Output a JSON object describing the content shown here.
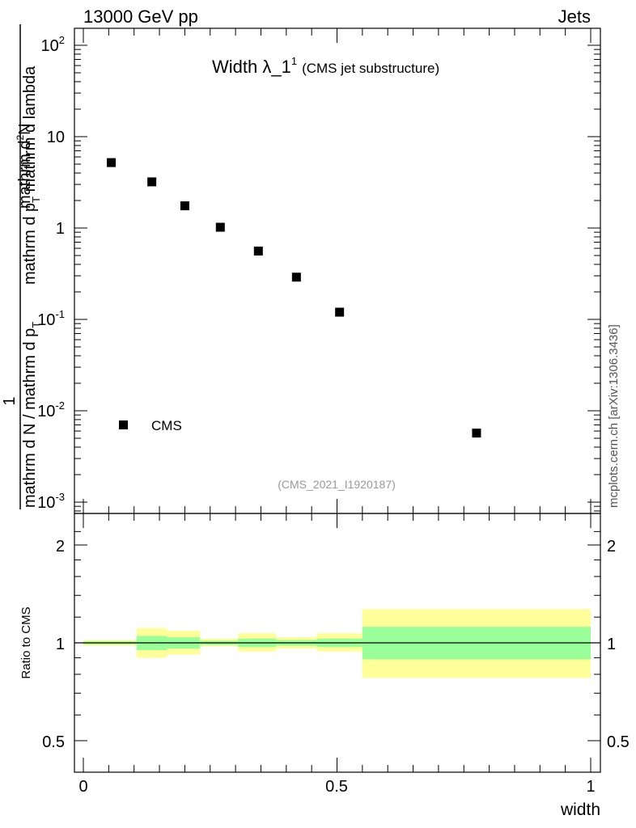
{
  "header": {
    "energy_label": "13000 GeV pp",
    "process_label": "Jets"
  },
  "top_panel": {
    "title_main": "Width λ_1",
    "title_sup": "1",
    "title_note": "(CMS jet substructure)",
    "ylabel_numerator": "mathrm d²N",
    "ylabel_numer_parts": [
      "mathrm d",
      "2",
      "N"
    ],
    "ylabel_denominator_parts": [
      "mathrm d p",
      "T",
      " mathrm d lambda"
    ],
    "ylabel_prefactor": "1",
    "ylabel_prefactor_denominator_parts": [
      "mathrm d N / mathrm d p",
      "T"
    ],
    "legend_label": "CMS",
    "analysis_id": "(CMS_2021_I1920187)",
    "yticks": [
      {
        "base": "10",
        "exp": "-3",
        "value": 0.001
      },
      {
        "base": "10",
        "exp": "-2",
        "value": 0.01
      },
      {
        "base": "10",
        "exp": "-1",
        "value": 0.1
      },
      {
        "base": "1",
        "exp": "",
        "value": 1
      },
      {
        "base": "10",
        "exp": "",
        "value": 10
      },
      {
        "base": "10",
        "exp": "2",
        "value": 100
      }
    ]
  },
  "ratio_panel": {
    "ylabel": "Ratio to CMS",
    "yticks": [
      "2",
      "1",
      "0.5"
    ],
    "xlabel": "width",
    "xticks": [
      "0",
      "0.5",
      "1"
    ]
  },
  "side_label": "mcplots.cern.ch [arXiv:1306.3436]",
  "colors": {
    "marker": "#000000",
    "band_outer": "#ffff99",
    "band_inner": "#99ff99",
    "analysis_id_text": "#999999"
  },
  "chart_data": {
    "type": "scatter",
    "title": "Width λ_1^1 (CMS jet substructure)",
    "xlabel": "width",
    "xlim": [
      0,
      1
    ],
    "ylim": [
      0.0008,
      150
    ],
    "yscale": "log",
    "series": [
      {
        "name": "CMS",
        "x": [
          0.055,
          0.135,
          0.2,
          0.27,
          0.345,
          0.42,
          0.505,
          0.775
        ],
        "y": [
          5.2,
          3.2,
          1.75,
          1.02,
          0.56,
          0.29,
          0.12,
          0.0057
        ]
      }
    ],
    "ratio": {
      "ylabel": "Ratio to CMS",
      "ylim": [
        0.4,
        2.3
      ],
      "yscale": "log",
      "bins": [
        {
          "xlo": 0.0,
          "xhi": 0.105,
          "inner": [
            0.99,
            1.01
          ],
          "outer": [
            0.98,
            1.02
          ]
        },
        {
          "xlo": 0.105,
          "xhi": 0.165,
          "inner": [
            0.95,
            1.05
          ],
          "outer": [
            0.9,
            1.11
          ]
        },
        {
          "xlo": 0.165,
          "xhi": 0.23,
          "inner": [
            0.96,
            1.04
          ],
          "outer": [
            0.92,
            1.09
          ]
        },
        {
          "xlo": 0.23,
          "xhi": 0.305,
          "inner": [
            0.985,
            1.015
          ],
          "outer": [
            0.975,
            1.03
          ]
        },
        {
          "xlo": 0.305,
          "xhi": 0.38,
          "inner": [
            0.97,
            1.03
          ],
          "outer": [
            0.94,
            1.07
          ]
        },
        {
          "xlo": 0.38,
          "xhi": 0.46,
          "inner": [
            0.98,
            1.02
          ],
          "outer": [
            0.96,
            1.04
          ]
        },
        {
          "xlo": 0.46,
          "xhi": 0.55,
          "inner": [
            0.97,
            1.03
          ],
          "outer": [
            0.94,
            1.07
          ]
        },
        {
          "xlo": 0.55,
          "xhi": 1.0,
          "inner": [
            0.89,
            1.12
          ],
          "outer": [
            0.78,
            1.27
          ]
        }
      ]
    }
  }
}
